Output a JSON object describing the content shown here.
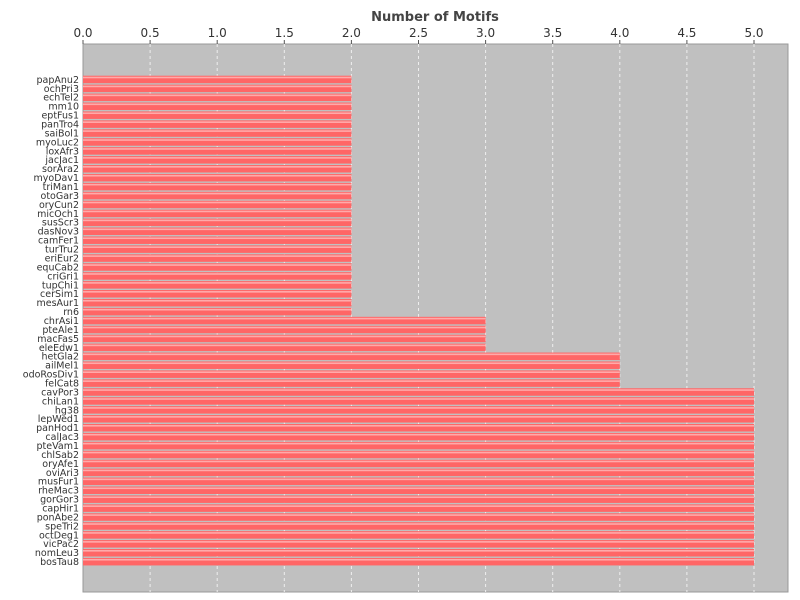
{
  "chart_data": {
    "type": "bar",
    "orientation": "horizontal",
    "title": "Number of Motifs",
    "xlabel": "",
    "ylabel": "",
    "xlim": [
      0,
      5.25
    ],
    "x_ticks": [
      0.0,
      0.5,
      1.0,
      1.5,
      2.0,
      2.5,
      3.0,
      3.5,
      4.0,
      4.5,
      5.0
    ],
    "x_tick_labels": [
      "0.0",
      "0.5",
      "1.0",
      "1.5",
      "2.0",
      "2.5",
      "3.0",
      "3.5",
      "4.0",
      "4.5",
      "5.0"
    ],
    "x_axis_position": "top",
    "grid": true,
    "colors": {
      "bar": "#ff6666",
      "bar_highlight": "#ffaaaa",
      "plot_background": "#c0c0c0",
      "grid": "#eeeeee"
    },
    "categories": [
      "papAnu2",
      "ochPri3",
      "echTel2",
      "mm10",
      "eptFus1",
      "panTro4",
      "saiBol1",
      "myoLuc2",
      "loxAfr3",
      "jacJac1",
      "sorAra2",
      "myoDav1",
      "triMan1",
      "otoGar3",
      "oryCun2",
      "micOch1",
      "susScr3",
      "dasNov3",
      "camFer1",
      "turTru2",
      "eriEur2",
      "equCab2",
      "criGri1",
      "tupChi1",
      "cerSim1",
      "mesAur1",
      "rn6",
      "chrAsi1",
      "pteAle1",
      "macFas5",
      "eleEdw1",
      "hetGla2",
      "ailMel1",
      "odoRosDiv1",
      "felCat8",
      "cavPor3",
      "chiLan1",
      "hg38",
      "lepWed1",
      "panHod1",
      "calJac3",
      "pteVam1",
      "chlSab2",
      "oryAfe1",
      "oviAri3",
      "musFur1",
      "rheMac3",
      "gorGor3",
      "capHir1",
      "ponAbe2",
      "speTri2",
      "octDeg1",
      "vicPac2",
      "nomLeu3",
      "bosTau8"
    ],
    "values": [
      2,
      2,
      2,
      2,
      2,
      2,
      2,
      2,
      2,
      2,
      2,
      2,
      2,
      2,
      2,
      2,
      2,
      2,
      2,
      2,
      2,
      2,
      2,
      2,
      2,
      2,
      2,
      3,
      3,
      3,
      3,
      4,
      4,
      4,
      4,
      5,
      5,
      5,
      5,
      5,
      5,
      5,
      5,
      5,
      5,
      5,
      5,
      5,
      5,
      5,
      5,
      5,
      5,
      5,
      5
    ]
  }
}
